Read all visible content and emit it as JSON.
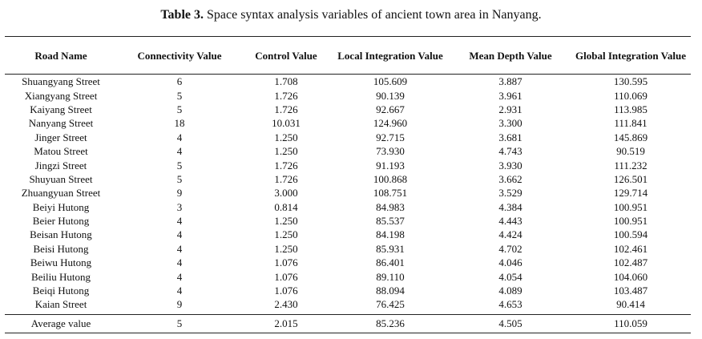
{
  "caption": {
    "label": "Table 3.",
    "text": "Space syntax analysis variables of ancient town area in Nanyang."
  },
  "table": {
    "headers": [
      "Road Name",
      "Connectivity Value",
      "Control Value",
      "Local Integration Value",
      "Mean Depth Value",
      "Global Integration Value"
    ],
    "rows": [
      [
        "Shuangyang Street",
        "6",
        "1.708",
        "105.609",
        "3.887",
        "130.595"
      ],
      [
        "Xiangyang Street",
        "5",
        "1.726",
        "90.139",
        "3.961",
        "110.069"
      ],
      [
        "Kaiyang Street",
        "5",
        "1.726",
        "92.667",
        "2.931",
        "113.985"
      ],
      [
        "Nanyang Street",
        "18",
        "10.031",
        "124.960",
        "3.300",
        "111.841"
      ],
      [
        "Jinger Street",
        "4",
        "1.250",
        "92.715",
        "3.681",
        "145.869"
      ],
      [
        "Matou Street",
        "4",
        "1.250",
        "73.930",
        "4.743",
        "90.519"
      ],
      [
        "Jingzi Street",
        "5",
        "1.726",
        "91.193",
        "3.930",
        "111.232"
      ],
      [
        "Shuyuan Street",
        "5",
        "1.726",
        "100.868",
        "3.662",
        "126.501"
      ],
      [
        "Zhuangyuan Street",
        "9",
        "3.000",
        "108.751",
        "3.529",
        "129.714"
      ],
      [
        "Beiyi Hutong",
        "3",
        "0.814",
        "84.983",
        "4.384",
        "100.951"
      ],
      [
        "Beier Hutong",
        "4",
        "1.250",
        "85.537",
        "4.443",
        "100.951"
      ],
      [
        "Beisan Hutong",
        "4",
        "1.250",
        "84.198",
        "4.424",
        "100.594"
      ],
      [
        "Beisi Hutong",
        "4",
        "1.250",
        "85.931",
        "4.702",
        "102.461"
      ],
      [
        "Beiwu Hutong",
        "4",
        "1.076",
        "86.401",
        "4.046",
        "102.487"
      ],
      [
        "Beiliu Hutong",
        "4",
        "1.076",
        "89.110",
        "4.054",
        "104.060"
      ],
      [
        "Beiqi Hutong",
        "4",
        "1.076",
        "88.094",
        "4.089",
        "103.487"
      ],
      [
        "Kaian Street",
        "9",
        "2.430",
        "76.425",
        "4.653",
        "90.414"
      ]
    ],
    "average": [
      "Average value",
      "5",
      "2.015",
      "85.236",
      "4.505",
      "110.059"
    ]
  }
}
